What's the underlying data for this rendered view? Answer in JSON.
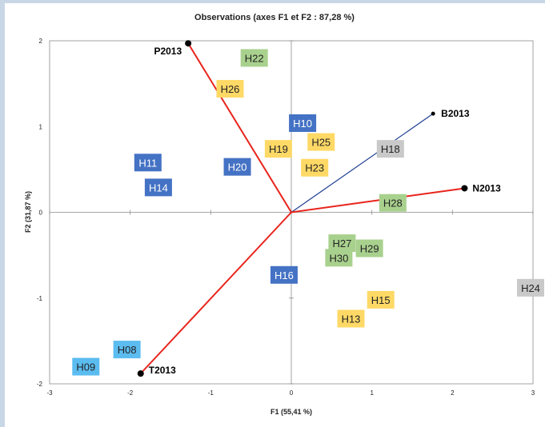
{
  "chart_data": {
    "type": "scatter",
    "title": "Observations (axes F1 et F2 : 87,28 %)",
    "xlabel": "F1 (55,41 %)",
    "ylabel": "F2 (31,87 %)",
    "xlim": [
      -3,
      3
    ],
    "ylim": [
      -2,
      2
    ],
    "x_ticks": [
      "-3",
      "-2",
      "-1",
      "0",
      "1",
      "2",
      "3"
    ],
    "y_ticks": [
      "-2",
      "-1",
      "0",
      "1",
      "2"
    ],
    "grid": false,
    "colors": {
      "vector_red": "#e8241c",
      "vector_blue": "#1f3f94",
      "class_blue": "#4472c4",
      "class_lightblue": "#5bbcf0",
      "class_green": "#a9d18e",
      "class_yellow": "#ffd966",
      "class_grey": "#c9c9c9"
    },
    "vectors": [
      {
        "label": "P2013",
        "x": -1.28,
        "y": 1.97,
        "color": "#e8241c"
      },
      {
        "label": "B2013",
        "x": 1.76,
        "y": 1.15,
        "color": "#1f3f94"
      },
      {
        "label": "N2013",
        "x": 2.15,
        "y": 0.28,
        "color": "#e8241c"
      },
      {
        "label": "T2013",
        "x": -1.87,
        "y": -1.88,
        "color": "#e8241c"
      }
    ],
    "points": [
      {
        "label": "H22",
        "x": -0.46,
        "y": 1.8,
        "fill": "#a9d18e"
      },
      {
        "label": "H26",
        "x": -0.76,
        "y": 1.44,
        "fill": "#ffd966"
      },
      {
        "label": "H10",
        "x": 0.14,
        "y": 1.04,
        "fill": "#4472c4"
      },
      {
        "label": "H19",
        "x": -0.16,
        "y": 0.74,
        "fill": "#ffd966"
      },
      {
        "label": "H25",
        "x": 0.37,
        "y": 0.82,
        "fill": "#ffd966"
      },
      {
        "label": "H18",
        "x": 1.23,
        "y": 0.74,
        "fill": "#c9c9c9"
      },
      {
        "label": "H11",
        "x": -1.78,
        "y": 0.58,
        "fill": "#4472c4"
      },
      {
        "label": "H20",
        "x": -0.67,
        "y": 0.53,
        "fill": "#4472c4"
      },
      {
        "label": "H23",
        "x": 0.29,
        "y": 0.52,
        "fill": "#ffd966"
      },
      {
        "label": "H14",
        "x": -1.65,
        "y": 0.29,
        "fill": "#4472c4"
      },
      {
        "label": "H28",
        "x": 1.26,
        "y": 0.11,
        "fill": "#a9d18e"
      },
      {
        "label": "H27",
        "x": 0.63,
        "y": -0.36,
        "fill": "#a9d18e"
      },
      {
        "label": "H29",
        "x": 0.97,
        "y": -0.42,
        "fill": "#a9d18e"
      },
      {
        "label": "H30",
        "x": 0.59,
        "y": -0.53,
        "fill": "#a9d18e"
      },
      {
        "label": "H16",
        "x": -0.09,
        "y": -0.73,
        "fill": "#4472c4"
      },
      {
        "label": "H24",
        "x": 2.98,
        "y": -0.88,
        "fill": "#c9c9c9"
      },
      {
        "label": "H15",
        "x": 1.11,
        "y": -1.02,
        "fill": "#ffd966"
      },
      {
        "label": "H13",
        "x": 0.74,
        "y": -1.24,
        "fill": "#ffd966"
      },
      {
        "label": "H08",
        "x": -2.04,
        "y": -1.6,
        "fill": "#5bbcf0"
      },
      {
        "label": "H09",
        "x": -2.55,
        "y": -1.8,
        "fill": "#5bbcf0"
      }
    ]
  }
}
